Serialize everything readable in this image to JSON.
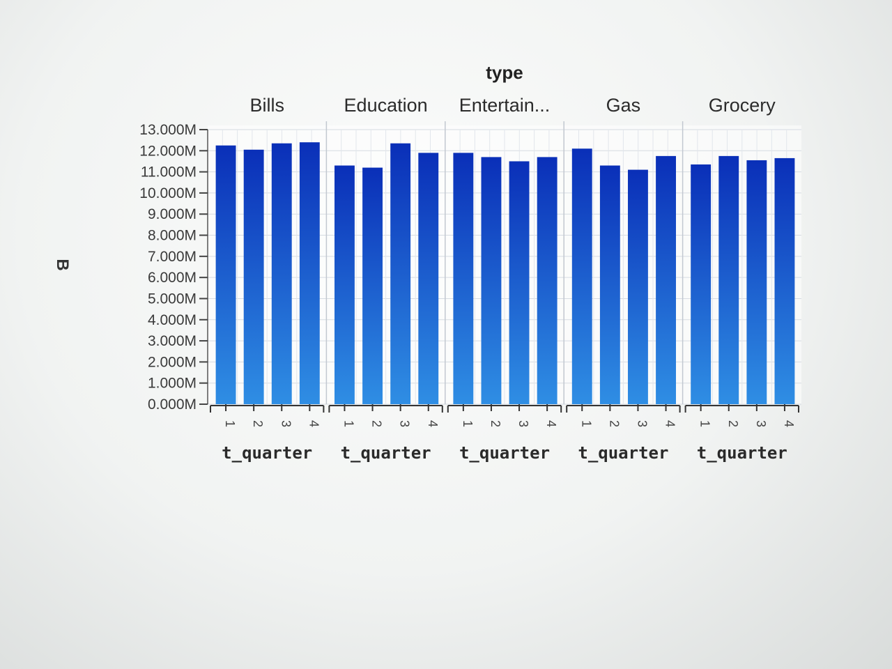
{
  "chart_data": {
    "type": "bar",
    "header": "type",
    "ylabel": "B",
    "xlabel": "t_quarter",
    "yticks": [
      "0.000M",
      "1.000M",
      "2.000M",
      "3.000M",
      "4.000M",
      "5.000M",
      "6.000M",
      "7.000M",
      "8.000M",
      "9.000M",
      "10.000M",
      "11.000M",
      "12.000M",
      "13.000M"
    ],
    "ylim": [
      0,
      13
    ],
    "unit": "M",
    "categories": [
      "1",
      "2",
      "3",
      "4"
    ],
    "facets": [
      {
        "name": "Bills",
        "values": [
          12.25,
          12.05,
          12.35,
          12.4
        ]
      },
      {
        "name": "Education",
        "values": [
          11.3,
          11.2,
          12.35,
          11.9
        ]
      },
      {
        "name": "Entertain...",
        "values": [
          11.9,
          11.7,
          11.5,
          11.7
        ]
      },
      {
        "name": "Gas",
        "values": [
          12.1,
          11.3,
          11.1,
          11.75
        ]
      },
      {
        "name": "Grocery",
        "values": [
          11.35,
          11.75,
          11.55,
          11.65
        ]
      }
    ],
    "grid": true,
    "bar_color_top": "#0a2fb8",
    "bar_color_bottom": "#2f8ee4"
  }
}
